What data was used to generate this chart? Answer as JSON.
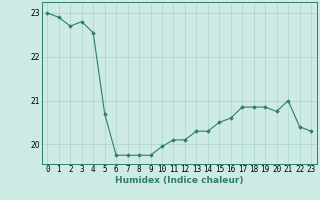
{
  "x": [
    0,
    1,
    2,
    3,
    4,
    5,
    6,
    7,
    8,
    9,
    10,
    11,
    12,
    13,
    14,
    15,
    16,
    17,
    18,
    19,
    20,
    21,
    22,
    23
  ],
  "y": [
    23.0,
    22.9,
    22.7,
    22.8,
    22.55,
    20.7,
    19.75,
    19.75,
    19.75,
    19.75,
    19.95,
    20.1,
    20.1,
    20.3,
    20.3,
    20.5,
    20.6,
    20.85,
    20.85,
    20.85,
    20.75,
    21.0,
    20.4,
    20.3
  ],
  "line_color": "#2e7d6e",
  "marker": "D",
  "marker_size": 1.8,
  "bg_color": "#cdeae4",
  "grid_color": "#aad4cc",
  "xlabel": "Humidex (Indice chaleur)",
  "ylim": [
    19.55,
    23.25
  ],
  "xlim": [
    -0.5,
    23.5
  ],
  "yticks": [
    20,
    21,
    22,
    23
  ],
  "xtick_labels": [
    "0",
    "1",
    "2",
    "3",
    "4",
    "5",
    "6",
    "7",
    "8",
    "9",
    "10",
    "11",
    "12",
    "13",
    "14",
    "15",
    "16",
    "17",
    "18",
    "19",
    "20",
    "21",
    "22",
    "23"
  ],
  "label_fontsize": 6.5,
  "tick_fontsize": 5.5
}
